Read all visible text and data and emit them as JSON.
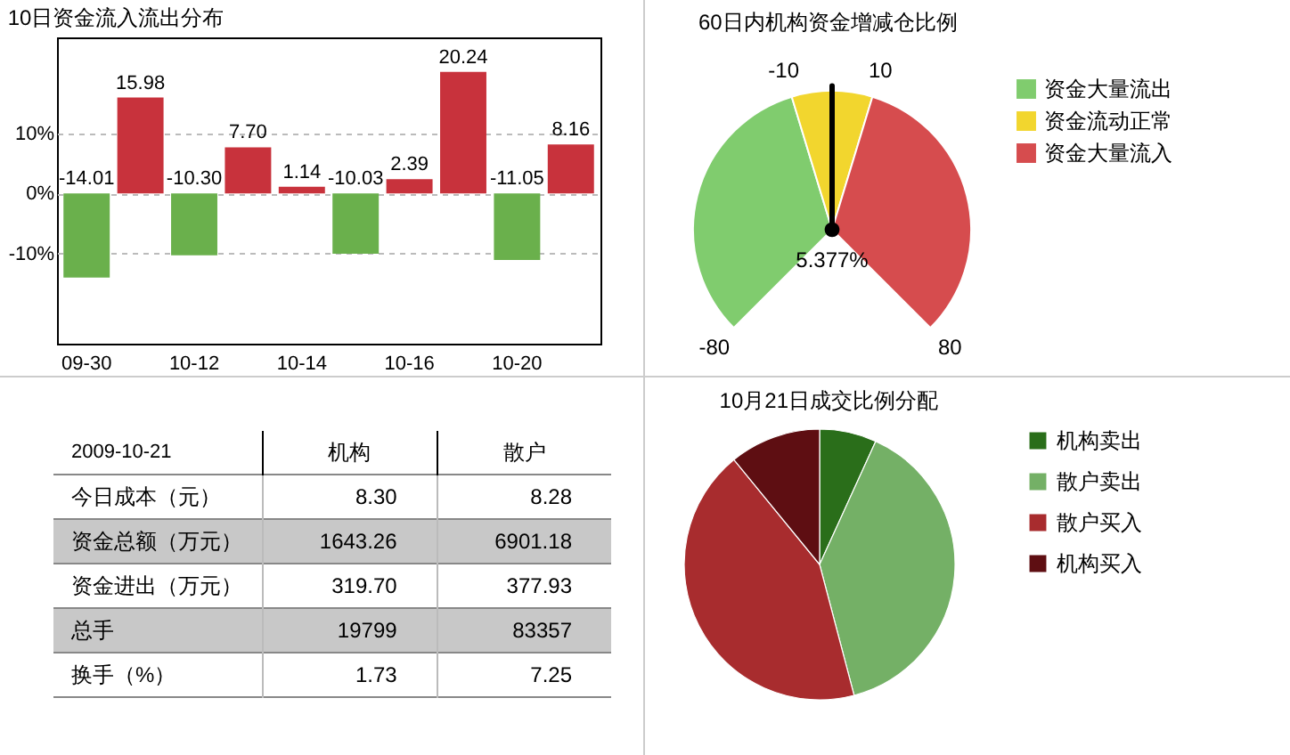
{
  "chart_data": [
    {
      "type": "bar",
      "title": "10日资金流入流出分布",
      "categories": [
        "09-30",
        null,
        "10-12",
        null,
        "10-14",
        null,
        "10-16",
        null,
        "10-20",
        null
      ],
      "values": [
        -14.01,
        15.98,
        -10.3,
        7.7,
        1.14,
        -10.03,
        2.39,
        20.24,
        -11.05,
        8.16
      ],
      "value_labels": [
        "-14.01",
        "15.98",
        "-10.30",
        "7.70",
        "1.14",
        "-10.03",
        "2.39",
        "20.24",
        "-11.05",
        "8.16"
      ],
      "colors": [
        "#6ab04c",
        "#c8323c",
        "#6ab04c",
        "#c8323c",
        "#c8323c",
        "#6ab04c",
        "#c8323c",
        "#c8323c",
        "#6ab04c",
        "#c8323c"
      ],
      "ylim": [
        -25,
        26
      ],
      "yticks": [
        {
          "value": -10,
          "label": "-10%"
        },
        {
          "value": 0,
          "label": "0%"
        },
        {
          "value": 10,
          "label": "10%"
        }
      ],
      "grid": "y"
    },
    {
      "type": "pie",
      "title": "60日内机构资金增减仓比例",
      "categories": [
        "资金大量流出",
        "资金流动正常",
        "资金大量流入"
      ],
      "values": [
        43.75,
        12.5,
        43.75
      ],
      "colors": [
        "#80cc6e",
        "#f2d62e",
        "#d64c4e"
      ],
      "needle": "资金流动正常",
      "legend": "right",
      "annotations": [
        "-80",
        "-10",
        "10",
        "80",
        "5.377%"
      ]
    },
    {
      "type": "other",
      "annotations": [
        "2009-10-21",
        "机构",
        "散户",
        "今日成本（元）",
        "8.30",
        "8.28",
        "资金总额（万元）",
        "1643.26",
        "6901.18",
        "资金进出（万元）",
        "319.70",
        "377.93",
        "总手",
        "19799",
        "83357",
        "换手（%）",
        "1.73",
        "7.25"
      ]
    },
    {
      "type": "pie",
      "title": "10月21日成交比例分配",
      "categories": [
        "机构卖出",
        "散户卖出",
        "散户买入",
        "机构买入"
      ],
      "values": [
        6.8,
        39.1,
        43.2,
        10.9
      ],
      "colors": [
        "#2a6e1a",
        "#74b066",
        "#a82c2e",
        "#5e0e12"
      ],
      "legend": "right"
    }
  ]
}
